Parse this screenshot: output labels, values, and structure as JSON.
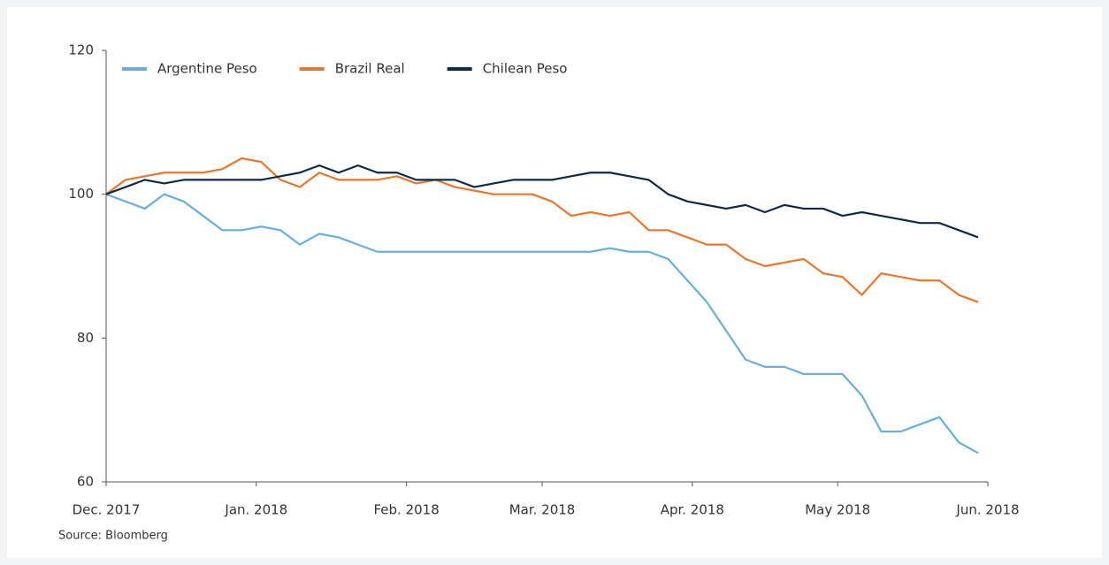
{
  "chart_data": {
    "type": "line",
    "x": [
      0,
      4,
      8,
      12,
      16,
      20,
      24,
      28,
      32,
      36,
      40,
      44,
      48,
      52,
      56,
      60,
      64,
      68,
      72,
      76,
      80,
      84,
      88,
      92,
      96,
      100,
      104,
      108,
      112,
      116,
      120,
      124,
      128,
      132,
      136,
      140,
      144,
      148,
      152,
      156,
      160,
      164,
      168,
      172,
      176,
      180
    ],
    "series": [
      {
        "name": "Argentine Peso",
        "color": "#6aaedc",
        "values": [
          100,
          99,
          98,
          100,
          99,
          97,
          95,
          95,
          95.5,
          95,
          93,
          94.5,
          94,
          93,
          92,
          92,
          92,
          92,
          92,
          92,
          92,
          92,
          92,
          92,
          92,
          92,
          92.5,
          92,
          92,
          91,
          88,
          85,
          81,
          77,
          76,
          76,
          75,
          75,
          75,
          72,
          67,
          67,
          68,
          69,
          65.5,
          64
        ]
      },
      {
        "name": "Brazil Real",
        "color": "#e8772e",
        "values": [
          100,
          102,
          102.5,
          103,
          103,
          103,
          103.5,
          105,
          104.5,
          102,
          101,
          103,
          102,
          102,
          102,
          102.5,
          101.5,
          102,
          101,
          100.5,
          100,
          100,
          100,
          99,
          97,
          97.5,
          97,
          97.5,
          95,
          95,
          94,
          93,
          93,
          91,
          90,
          90.5,
          91,
          89,
          88.5,
          86,
          89,
          88.5,
          88,
          88,
          86,
          85
        ]
      },
      {
        "name": "Chilean Peso",
        "color": "#0f2a47",
        "values": [
          100,
          101,
          102,
          101.5,
          102,
          102,
          102,
          102,
          102,
          102.5,
          103,
          104,
          103,
          104,
          103,
          103,
          102,
          102,
          102,
          101,
          101.5,
          102,
          102,
          102,
          102.5,
          103,
          103,
          102.5,
          102,
          100,
          99,
          98.5,
          98,
          98.5,
          97.5,
          98.5,
          98,
          98,
          97,
          97.5,
          97,
          96.5,
          96,
          96,
          95,
          94
        ]
      }
    ],
    "xlim": [
      0,
      182
    ],
    "xticks": [
      {
        "value": 0,
        "label": "Dec. 2017"
      },
      {
        "value": 31,
        "label": "Jan. 2018"
      },
      {
        "value": 62,
        "label": "Feb. 2018"
      },
      {
        "value": 90,
        "label": "Mar. 2018"
      },
      {
        "value": 121,
        "label": "Apr. 2018"
      },
      {
        "value": 151,
        "label": "May 2018"
      },
      {
        "value": 182,
        "label": "Jun. 2018"
      }
    ],
    "ylim": [
      60,
      120
    ],
    "yticks": [
      60,
      80,
      100,
      120
    ],
    "legend": "top-left",
    "source": "Source: Bloomberg"
  }
}
